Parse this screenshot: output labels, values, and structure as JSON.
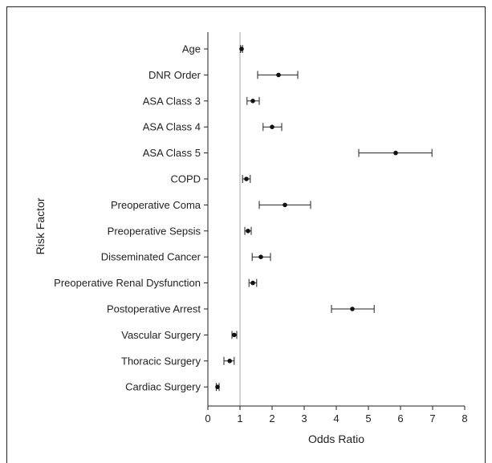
{
  "chart_data": {
    "type": "forest",
    "xlabel": "Odds Ratio",
    "ylabel": "Risk Factor",
    "xlim": [
      0,
      8
    ],
    "xticks": [
      0,
      1,
      2,
      3,
      4,
      5,
      6,
      7,
      8
    ],
    "reference_line": 1,
    "reference_line_color": "#aaaaaa",
    "point_color": "#111111",
    "rows": [
      {
        "label": "Age",
        "or": 1.05,
        "lo": 1.02,
        "hi": 1.08
      },
      {
        "label": "DNR Order",
        "or": 2.2,
        "lo": 1.55,
        "hi": 2.8
      },
      {
        "label": "ASA Class 3",
        "or": 1.4,
        "lo": 1.22,
        "hi": 1.6
      },
      {
        "label": "ASA Class 4",
        "or": 2.0,
        "lo": 1.72,
        "hi": 2.3
      },
      {
        "label": "ASA Class 5",
        "or": 5.85,
        "lo": 4.7,
        "hi": 6.98
      },
      {
        "label": "COPD",
        "or": 1.2,
        "lo": 1.08,
        "hi": 1.32
      },
      {
        "label": "Preoperative Coma",
        "or": 2.4,
        "lo": 1.6,
        "hi": 3.2
      },
      {
        "label": "Preoperative Sepsis",
        "or": 1.25,
        "lo": 1.15,
        "hi": 1.35
      },
      {
        "label": "Disseminated Cancer",
        "or": 1.65,
        "lo": 1.38,
        "hi": 1.95
      },
      {
        "label": "Preoperative Renal Dysfunction",
        "or": 1.4,
        "lo": 1.28,
        "hi": 1.52
      },
      {
        "label": "Postoperative Arrest",
        "or": 4.5,
        "lo": 3.85,
        "hi": 5.18
      },
      {
        "label": "Vascular Surgery",
        "or": 0.82,
        "lo": 0.75,
        "hi": 0.9
      },
      {
        "label": "Thoracic Surgery",
        "or": 0.68,
        "lo": 0.5,
        "hi": 0.82
      },
      {
        "label": "Cardiac Surgery",
        "or": 0.3,
        "lo": 0.26,
        "hi": 0.35
      }
    ]
  }
}
